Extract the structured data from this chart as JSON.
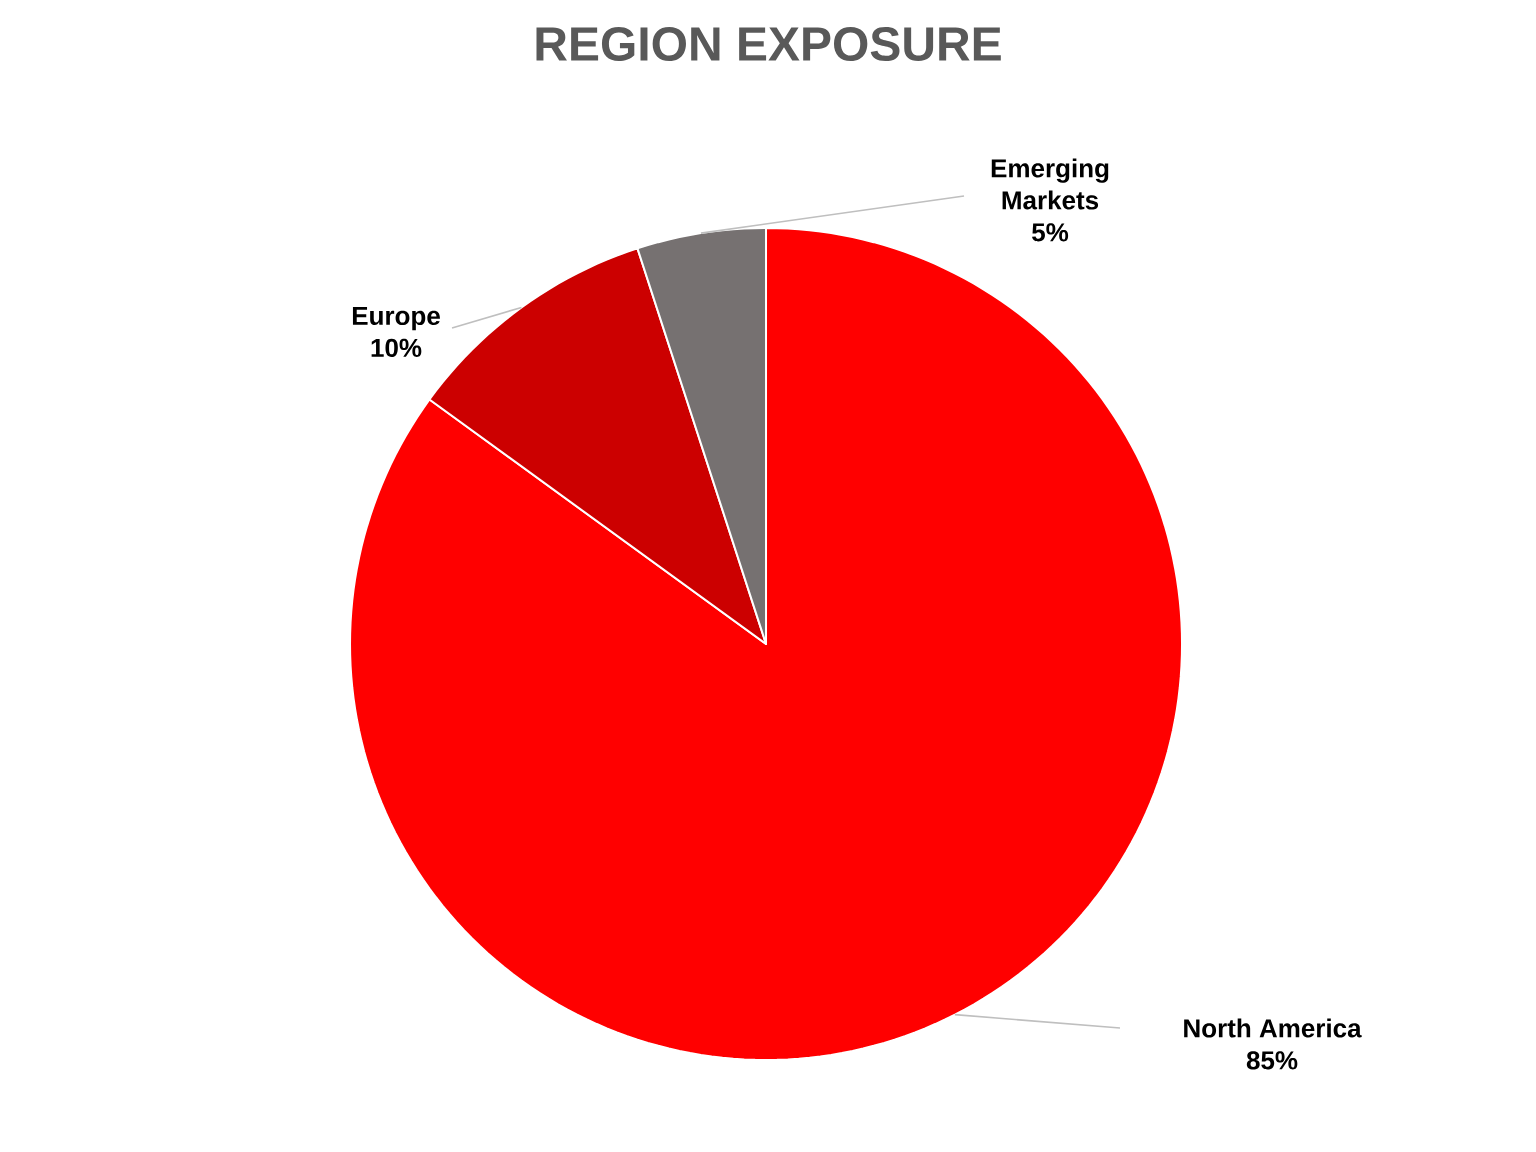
{
  "chart_data": {
    "type": "pie",
    "title": "REGION EXPOSURE",
    "categories": [
      "North America",
      "Europe",
      "Emerging Markets"
    ],
    "values": [
      85,
      10,
      5
    ],
    "colors": [
      "#ff0000",
      "#cc0000",
      "#767171"
    ],
    "value_labels": [
      "85%",
      "10%",
      "5%"
    ]
  }
}
